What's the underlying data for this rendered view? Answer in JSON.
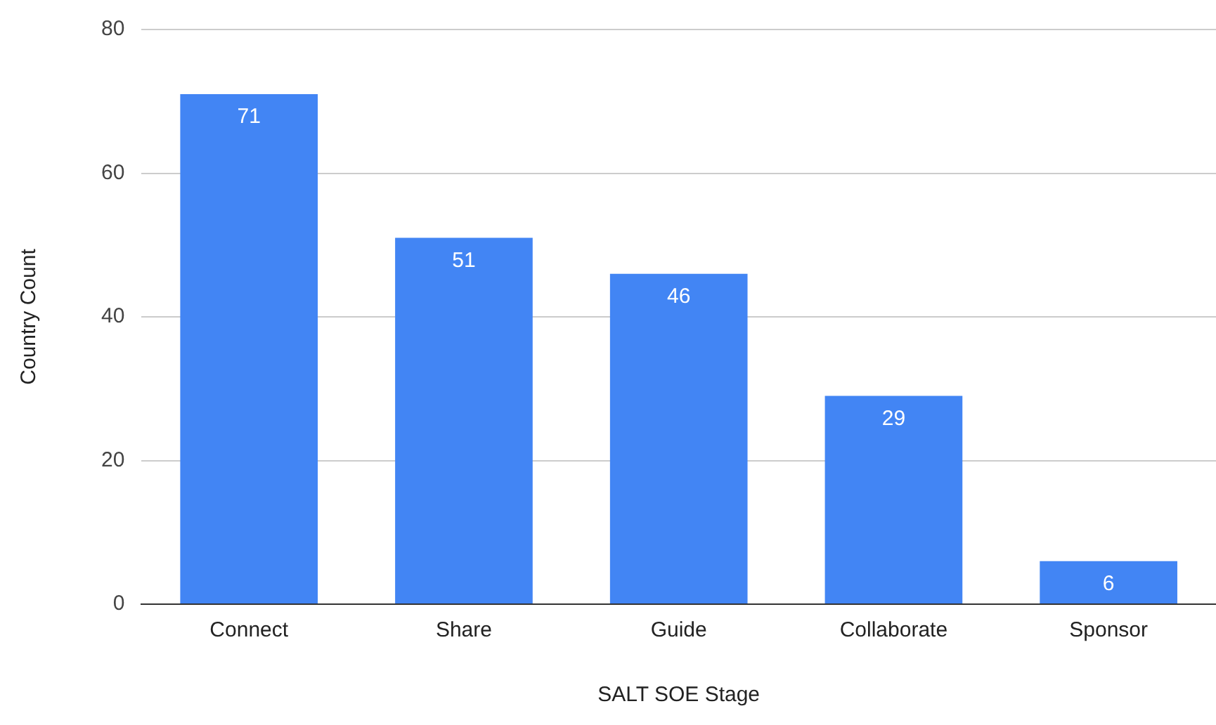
{
  "chart_data": {
    "type": "bar",
    "xlabel": "SALT SOE Stage",
    "ylabel": "Country Count",
    "categories": [
      "Connect",
      "Share",
      "Guide",
      "Collaborate",
      "Sponsor"
    ],
    "values": [
      71,
      51,
      46,
      29,
      6
    ],
    "color": "#4285f4",
    "ylim": [
      0,
      80
    ],
    "yticks": [
      0,
      20,
      40,
      60,
      80
    ],
    "grid": "y",
    "data_labels": true
  }
}
